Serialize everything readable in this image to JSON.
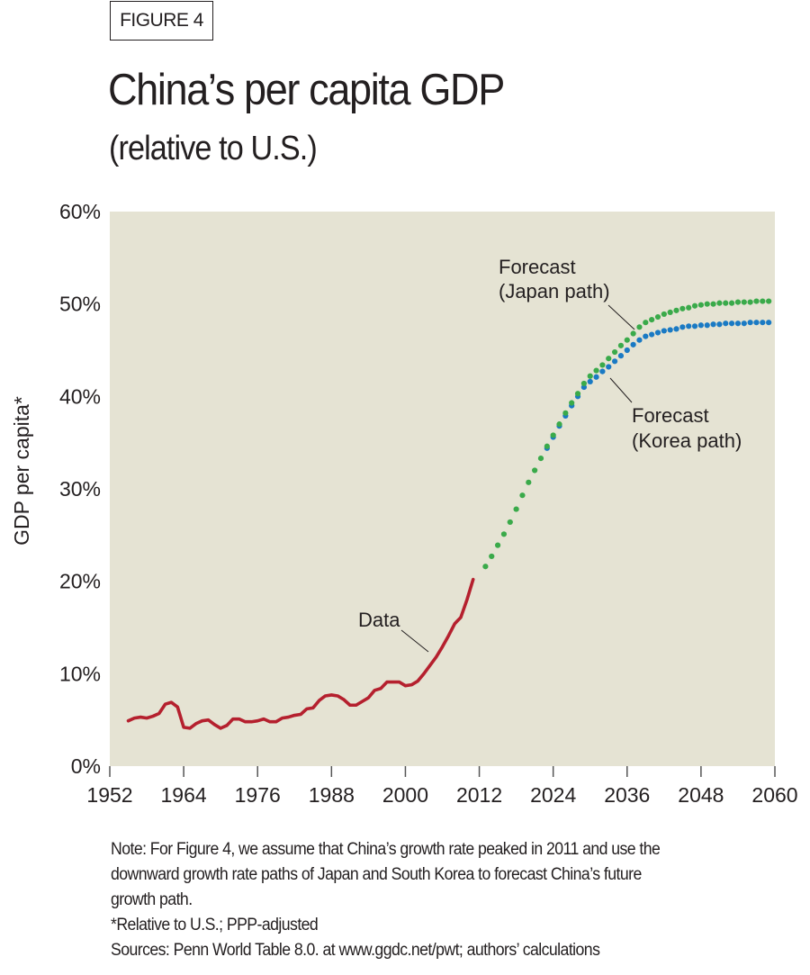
{
  "figure_label": "FIGURE 4",
  "title": "China’s per capita GDP",
  "subtitle": "(relative to U.S.)",
  "notes": {
    "note_lines": [
      "Note: For Figure 4, we assume that China’s growth rate peaked in 2011 and use the",
      "downward growth rate paths of Japan and South Korea to forecast China’s future",
      "growth path."
    ],
    "footnote": "*Relative to U.S.; PPP-adjusted",
    "sources": "Sources: Penn World Table 8.0. at www.ggdc.net/pwt; authors’ calculations"
  },
  "chart_data": {
    "type": "line",
    "title": "China’s per capita GDP (relative to U.S.)",
    "xlabel": "",
    "ylabel": "GDP per capita*",
    "xlim": [
      1952,
      2060
    ],
    "ylim": [
      0,
      60
    ],
    "x_ticks": [
      1952,
      1964,
      1976,
      1988,
      2000,
      2012,
      2024,
      2036,
      2048,
      2060
    ],
    "x_tick_labels": [
      "1952",
      "1964",
      "1976",
      "1988",
      "2000",
      "2012",
      "2024",
      "2036",
      "2048",
      "2060"
    ],
    "y_ticks": [
      0,
      10,
      20,
      30,
      40,
      50,
      60
    ],
    "y_tick_labels": [
      "0%",
      "10%",
      "20%",
      "30%",
      "40%",
      "50%",
      "60%"
    ],
    "grid": false,
    "background": "#e5e3d3",
    "series": [
      {
        "name": "Data",
        "style": "solid-line",
        "color": "#b5202e",
        "x": [
          1955,
          1956,
          1957,
          1958,
          1959,
          1960,
          1961,
          1962,
          1963,
          1964,
          1965,
          1966,
          1967,
          1968,
          1969,
          1970,
          1971,
          1972,
          1973,
          1974,
          1975,
          1976,
          1977,
          1978,
          1979,
          1980,
          1981,
          1982,
          1983,
          1984,
          1985,
          1986,
          1987,
          1988,
          1989,
          1990,
          1991,
          1992,
          1993,
          1994,
          1995,
          1996,
          1997,
          1998,
          1999,
          2000,
          2001,
          2002,
          2003,
          2004,
          2005,
          2006,
          2007,
          2008,
          2009,
          2010,
          2011
        ],
        "values": [
          4.9,
          5.2,
          5.3,
          5.2,
          5.4,
          5.7,
          6.7,
          6.9,
          6.4,
          4.2,
          4.1,
          4.6,
          4.9,
          5.0,
          4.5,
          4.1,
          4.4,
          5.1,
          5.1,
          4.8,
          4.8,
          4.9,
          5.1,
          4.8,
          4.8,
          5.2,
          5.3,
          5.5,
          5.6,
          6.2,
          6.3,
          7.1,
          7.6,
          7.7,
          7.6,
          7.2,
          6.6,
          6.6,
          7.0,
          7.4,
          8.2,
          8.4,
          9.1,
          9.1,
          9.1,
          8.7,
          8.8,
          9.2,
          10.0,
          10.9,
          11.8,
          12.9,
          14.1,
          15.4,
          16.1,
          18.0,
          20.2
        ]
      },
      {
        "name": "Forecast (Japan path)",
        "style": "dotted",
        "color": "#3aaa4a",
        "x": [
          2013,
          2014,
          2015,
          2016,
          2017,
          2018,
          2019,
          2020,
          2021,
          2022,
          2023,
          2024,
          2025,
          2026,
          2027,
          2028,
          2029,
          2030,
          2031,
          2032,
          2033,
          2034,
          2035,
          2036,
          2037,
          2038,
          2039,
          2040,
          2041,
          2042,
          2043,
          2044,
          2045,
          2046,
          2047,
          2048,
          2049,
          2050,
          2051,
          2052,
          2053,
          2054,
          2055,
          2056,
          2057,
          2058,
          2059
        ],
        "values": [
          21.6,
          22.7,
          23.9,
          25.1,
          26.4,
          27.8,
          29.3,
          30.7,
          32.0,
          33.3,
          34.6,
          35.8,
          37.0,
          38.2,
          39.3,
          40.3,
          41.4,
          42.2,
          42.8,
          43.4,
          44.1,
          44.8,
          45.5,
          46.1,
          46.8,
          47.5,
          48.0,
          48.3,
          48.6,
          48.9,
          49.1,
          49.3,
          49.5,
          49.6,
          49.8,
          49.9,
          50.0,
          50.0,
          50.1,
          50.1,
          50.1,
          50.2,
          50.2,
          50.2,
          50.3,
          50.3,
          50.3
        ]
      },
      {
        "name": "Forecast (Korea path)",
        "style": "dotted",
        "color": "#1a7ac4",
        "x": [
          2023,
          2024,
          2025,
          2026,
          2027,
          2028,
          2029,
          2030,
          2031,
          2032,
          2033,
          2034,
          2035,
          2036,
          2037,
          2038,
          2039,
          2040,
          2041,
          2042,
          2043,
          2044,
          2045,
          2046,
          2047,
          2048,
          2049,
          2050,
          2051,
          2052,
          2053,
          2054,
          2055,
          2056,
          2057,
          2058,
          2059
        ],
        "values": [
          34.4,
          35.6,
          36.8,
          37.9,
          39.0,
          40.0,
          41.0,
          41.6,
          42.1,
          42.7,
          43.2,
          43.8,
          44.4,
          45.0,
          45.6,
          46.1,
          46.5,
          46.7,
          46.9,
          47.1,
          47.2,
          47.3,
          47.5,
          47.6,
          47.6,
          47.7,
          47.7,
          47.8,
          47.8,
          47.9,
          47.9,
          47.9,
          47.9,
          48.0,
          48.0,
          48.0,
          48.0
        ]
      }
    ],
    "annotations": [
      {
        "label": "Data",
        "target_series": "Data",
        "target_x": 2004.5
      },
      {
        "label": "Forecast",
        "sublabel": "(Japan path)",
        "target_series": "Forecast (Japan path)",
        "target_x": 2038
      },
      {
        "label": "Forecast",
        "sublabel": "(Korea path)",
        "target_series": "Forecast (Korea path)",
        "target_x": 2035
      }
    ]
  }
}
